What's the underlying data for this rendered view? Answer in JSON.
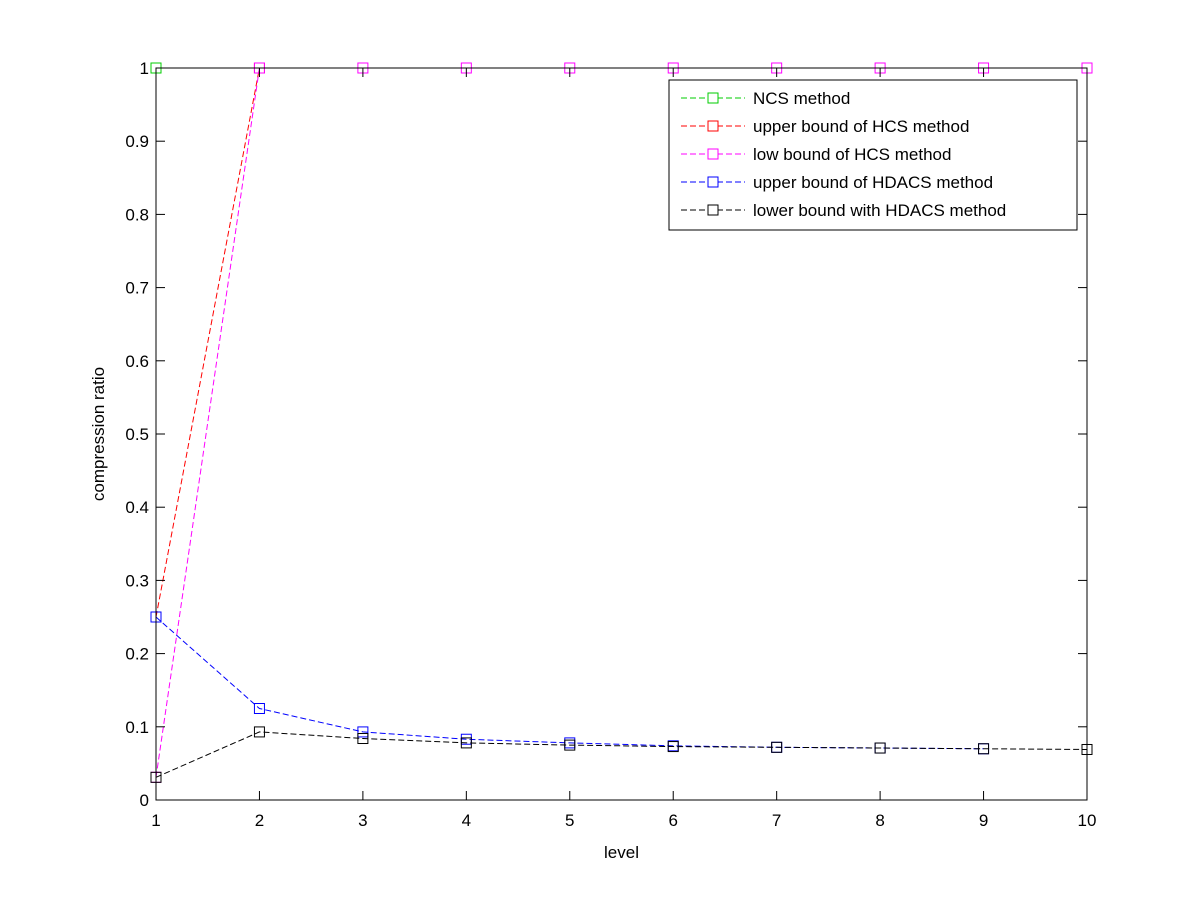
{
  "chart_data": {
    "type": "line",
    "title": "",
    "xlabel": "level",
    "ylabel": "compression ratio",
    "xlim": [
      1,
      10
    ],
    "ylim": [
      0,
      1
    ],
    "xticks": [
      "1",
      "2",
      "3",
      "4",
      "5",
      "6",
      "7",
      "8",
      "9",
      "10"
    ],
    "yticks": [
      "0",
      "0.1",
      "0.2",
      "0.3",
      "0.4",
      "0.5",
      "0.6",
      "0.7",
      "0.8",
      "0.9",
      "1"
    ],
    "grid": false,
    "legend_position": "top-right",
    "marker": "square",
    "line_style": "dashed",
    "series": [
      {
        "name": "NCS method",
        "color": "#00cc00",
        "x": [
          1
        ],
        "y": [
          1
        ]
      },
      {
        "name": "upper bound of HCS method",
        "color": "#ff0000",
        "x": [
          1,
          2
        ],
        "y": [
          0.25,
          1
        ]
      },
      {
        "name": "low bound of HCS method",
        "color": "#ff00ff",
        "x": [
          1,
          2,
          3,
          4,
          5,
          6,
          7,
          8,
          9,
          10
        ],
        "y": [
          0.031,
          1,
          1,
          1,
          1,
          1,
          1,
          1,
          1,
          1
        ]
      },
      {
        "name": "upper bound of HDACS method",
        "color": "#0000ff",
        "x": [
          1,
          2,
          3,
          4,
          5,
          6,
          7,
          8,
          9
        ],
        "y": [
          0.25,
          0.125,
          0.093,
          0.083,
          0.078,
          0.074,
          0.072,
          0.071,
          0.07
        ]
      },
      {
        "name": "lower bound with HDACS method",
        "color": "#000000",
        "x": [
          1,
          2,
          3,
          4,
          5,
          6,
          7,
          8,
          9,
          10
        ],
        "y": [
          0.031,
          0.093,
          0.084,
          0.078,
          0.075,
          0.073,
          0.072,
          0.071,
          0.07,
          0.069
        ]
      }
    ]
  }
}
